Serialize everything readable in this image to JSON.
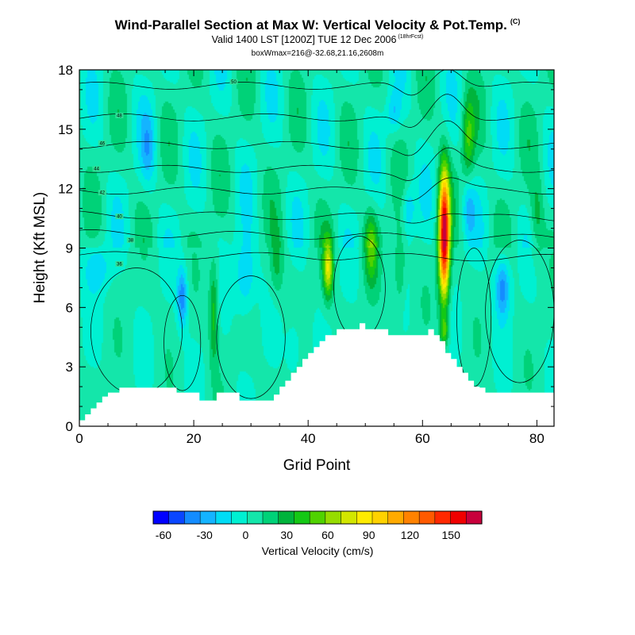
{
  "title": {
    "main": "Wind-Parallel Section at Max W: Vertical Velocity & Pot.Temp.",
    "main_suffix": "(C)",
    "valid": "Valid 1400 LST [1200Z] TUE 12 Dec 2006",
    "valid_suffix": "(18hrFcst)",
    "box": "boxWmax=216@-32.68,21.16,2608m"
  },
  "chart_data": {
    "type": "heatmap",
    "xlabel": "Grid Point",
    "ylabel": "Height (Kft MSL)",
    "xlim": [
      0,
      83
    ],
    "ylim": [
      0,
      18
    ],
    "x_ticks": [
      0,
      20,
      40,
      60,
      80
    ],
    "y_ticks": [
      0,
      3,
      6,
      9,
      12,
      15,
      18
    ],
    "colorbar": {
      "title": "Vertical Velocity (cm/s)",
      "colors": [
        "#0000ff",
        "#0a46ff",
        "#148cff",
        "#14b4ff",
        "#00dcf5",
        "#00f0d2",
        "#14e6aa",
        "#00d278",
        "#00b43c",
        "#14c814",
        "#50d200",
        "#96dc00",
        "#d2e600",
        "#ffeb00",
        "#ffd200",
        "#ffaa00",
        "#ff8200",
        "#ff5a00",
        "#ff2800",
        "#f00000",
        "#c8003c"
      ],
      "tick_values": [
        -60,
        -30,
        0,
        30,
        60,
        90,
        120,
        150
      ],
      "tick_labels": [
        "-60",
        "-30",
        "0",
        "30",
        "60",
        "90",
        "120",
        "150"
      ],
      "range": [
        -67.5,
        172.5
      ]
    },
    "terrain_kft": [
      [
        0,
        0.3
      ],
      [
        1,
        0.6
      ],
      [
        2,
        0.9
      ],
      [
        3,
        1.2
      ],
      [
        4,
        1.5
      ],
      [
        5,
        1.7
      ],
      [
        7,
        1.95
      ],
      [
        16,
        1.95
      ],
      [
        17,
        1.7
      ],
      [
        20,
        1.7
      ],
      [
        21,
        1.3
      ],
      [
        23,
        1.3
      ],
      [
        24,
        1.7
      ],
      [
        27,
        1.7
      ],
      [
        28,
        1.3
      ],
      [
        33,
        1.3
      ],
      [
        34,
        1.6
      ],
      [
        35,
        2.0
      ],
      [
        36,
        2.3
      ],
      [
        37,
        2.7
      ],
      [
        38,
        3.0
      ],
      [
        39,
        3.4
      ],
      [
        40,
        3.7
      ],
      [
        41,
        4.0
      ],
      [
        42,
        4.3
      ],
      [
        43,
        4.6
      ],
      [
        44,
        4.6
      ],
      [
        45,
        4.9
      ],
      [
        48,
        4.9
      ],
      [
        49,
        5.2
      ],
      [
        50,
        4.9
      ],
      [
        53,
        4.9
      ],
      [
        54,
        4.6
      ],
      [
        60,
        4.6
      ],
      [
        61,
        4.9
      ],
      [
        62,
        4.6
      ],
      [
        63,
        4.3
      ],
      [
        64,
        3.7
      ],
      [
        65,
        3.4
      ],
      [
        66,
        3.0
      ],
      [
        67,
        2.7
      ],
      [
        68,
        2.3
      ],
      [
        69,
        2.0
      ],
      [
        70,
        1.95
      ],
      [
        71,
        1.7
      ],
      [
        83,
        1.7
      ]
    ],
    "w_field_features": [
      {
        "x": 63.8,
        "y": 9.5,
        "peak_cm_s": 165
      },
      {
        "x": 63.8,
        "y": 4.8,
        "peak_cm_s": 40
      },
      {
        "x": 43.5,
        "y": 8.0,
        "peak_cm_s": 72
      },
      {
        "x": 51.0,
        "y": 9.0,
        "peak_cm_s": 45
      },
      {
        "x": 56.0,
        "y": 8.0,
        "peak_cm_s": 28
      },
      {
        "x": 23.5,
        "y": 5.8,
        "peak_cm_s": 38
      },
      {
        "x": 18.0,
        "y": 6.5,
        "peak_cm_s": -45
      },
      {
        "x": 74.0,
        "y": 7.0,
        "peak_cm_s": -45
      },
      {
        "x": 29.0,
        "y": 7.5,
        "peak_cm_s": -30
      },
      {
        "x": 34.5,
        "y": 8.2,
        "peak_cm_s": 24
      },
      {
        "x": 37.5,
        "y": 4.0,
        "peak_cm_s": -22
      },
      {
        "x": 68.0,
        "y": 14.5,
        "peak_cm_s": 40
      },
      {
        "x": 68.0,
        "y": 11.0,
        "peak_cm_s": -25
      },
      {
        "x": 57.5,
        "y": 11.0,
        "peak_cm_s": -28
      },
      {
        "x": 12.0,
        "y": 14.0,
        "peak_cm_s": -25
      },
      {
        "x": 55.0,
        "y": 15.8,
        "peak_cm_s": -25
      },
      {
        "x": 3.0,
        "y": 8.0,
        "peak_cm_s": -25
      },
      {
        "x": 80.0,
        "y": 10.5,
        "peak_cm_s": 25
      }
    ],
    "theta_contours": [
      {
        "value": 36,
        "label": "36"
      },
      {
        "value": 38,
        "label": "38"
      },
      {
        "value": 40,
        "label": "40"
      },
      {
        "value": 42,
        "label": "42"
      },
      {
        "value": 44,
        "label": "44"
      },
      {
        "value": 46,
        "label": "46"
      },
      {
        "value": 48,
        "label": "48"
      },
      {
        "value": 50,
        "label": "50"
      }
    ]
  }
}
